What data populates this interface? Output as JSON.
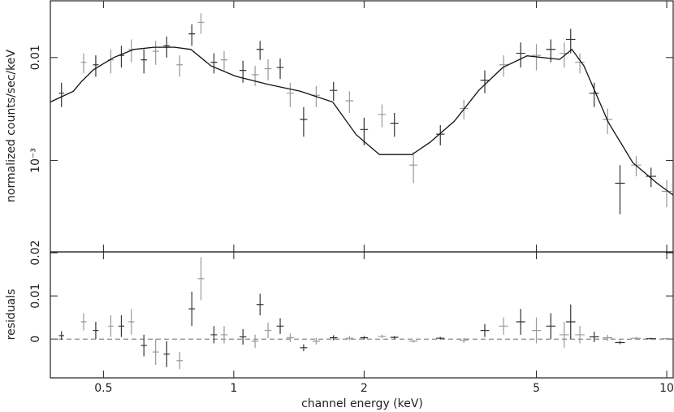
{
  "chart_data": [
    {
      "type": "spectrum",
      "ylabel": "normalized counts/sec/keV",
      "log_x": true,
      "log_y": true,
      "xlim": [
        0.377,
        10.35
      ],
      "ylim": [
        0.000129,
        0.0356
      ],
      "yticks": [
        0.01,
        {
          "value": 0.001,
          "label": "10⁻³"
        }
      ],
      "series": [
        {
          "style": "errorbar",
          "color": "#333333",
          "x": [
            0.4,
            0.45,
            0.48,
            0.52,
            0.55,
            0.58,
            0.62,
            0.66,
            0.7,
            0.75,
            0.8,
            0.84,
            0.9,
            0.95,
            1.05,
            1.12,
            1.15,
            1.2,
            1.28,
            1.35,
            1.45,
            1.55,
            1.7,
            1.85,
            2.0,
            2.2,
            2.35,
            2.6,
            3.0,
            3.4,
            3.8,
            4.2,
            4.6,
            5.0,
            5.4,
            5.8,
            6.0,
            6.3,
            6.8,
            7.3,
            7.8,
            8.5,
            9.2,
            10.0
          ],
          "values": [
            0.0045,
            0.009,
            0.0085,
            0.0095,
            0.0105,
            0.012,
            0.0095,
            0.0115,
            0.013,
            0.0085,
            0.017,
            0.022,
            0.009,
            0.0095,
            0.0075,
            0.0068,
            0.012,
            0.0078,
            0.008,
            0.0045,
            0.0025,
            0.0043,
            0.0048,
            0.0038,
            0.002,
            0.0028,
            0.0023,
            0.0009,
            0.0018,
            0.0032,
            0.006,
            0.0085,
            0.011,
            0.0105,
            0.012,
            0.011,
            0.015,
            0.009,
            0.0045,
            0.0025,
            0.0006,
            0.0009,
            0.0007,
            0.0005
          ],
          "errors": [
            0.0012,
            0.002,
            0.002,
            0.0025,
            0.0025,
            0.003,
            0.0025,
            0.003,
            0.003,
            0.002,
            0.004,
            0.005,
            0.002,
            0.002,
            0.0018,
            0.0015,
            0.0025,
            0.0018,
            0.0018,
            0.0012,
            0.0008,
            0.001,
            0.001,
            0.0009,
            0.0006,
            0.0007,
            0.0006,
            0.0003,
            0.0004,
            0.0007,
            0.0015,
            0.002,
            0.003,
            0.003,
            0.003,
            0.003,
            0.004,
            0.002,
            0.0012,
            0.0007,
            0.0003,
            0.0002,
            0.00015,
            0.00015
          ]
        },
        {
          "style": "line",
          "color": "#111111",
          "x": [
            0.377,
            0.426,
            0.444,
            0.474,
            0.528,
            0.588,
            0.655,
            0.73,
            0.796,
            0.886,
            1.009,
            1.198,
            1.424,
            1.692,
            1.917,
            2.17,
            2.58,
            2.84,
            3.23,
            3.68,
            4.18,
            4.76,
            5.66,
            6.04,
            6.44,
            7.33,
            8.35,
            9.5,
            10.35
          ],
          "values": [
            0.0037,
            0.0047,
            0.0058,
            0.0076,
            0.01,
            0.012,
            0.0126,
            0.0126,
            0.012,
            0.0083,
            0.0066,
            0.0055,
            0.0047,
            0.0037,
            0.00178,
            0.00114,
            0.00114,
            0.0015,
            0.0024,
            0.0048,
            0.008,
            0.0104,
            0.0096,
            0.012,
            0.0083,
            0.00235,
            0.00095,
            0.0006,
            0.00046
          ]
        }
      ]
    },
    {
      "type": "residuals",
      "ylabel": "residuals",
      "xlabel": "channel energy (keV)",
      "log_x": true,
      "xlim": [
        0.377,
        10.35
      ],
      "ylim": [
        -0.009,
        0.0202
      ],
      "xticks": [
        0.5,
        1,
        2,
        5,
        10
      ],
      "yticks": [
        0,
        0.01,
        0.02
      ],
      "zero_line": true,
      "series": [
        {
          "style": "errorbar",
          "color": "#333333",
          "x": [
            0.4,
            0.45,
            0.48,
            0.52,
            0.55,
            0.58,
            0.62,
            0.66,
            0.7,
            0.75,
            0.8,
            0.84,
            0.9,
            0.95,
            1.05,
            1.12,
            1.15,
            1.2,
            1.28,
            1.35,
            1.45,
            1.55,
            1.7,
            1.85,
            2.0,
            2.2,
            2.35,
            2.6,
            3.0,
            3.4,
            3.8,
            4.2,
            4.6,
            5.0,
            5.4,
            5.8,
            6.0,
            6.3,
            6.8,
            7.3,
            7.8,
            8.5,
            9.2,
            10.0
          ],
          "values": [
            0.0008,
            0.004,
            0.002,
            0.003,
            0.003,
            0.004,
            -0.0015,
            -0.003,
            -0.0035,
            -0.005,
            0.007,
            0.014,
            0.001,
            0.001,
            0.0005,
            -0.0005,
            0.008,
            0.002,
            0.003,
            0.0003,
            -0.002,
            -0.0005,
            0.0003,
            0.0002,
            0.0003,
            0.0006,
            0.0004,
            -0.0005,
            0.0002,
            -0.0003,
            0.002,
            0.003,
            0.004,
            0.002,
            0.003,
            0.001,
            0.004,
            0.001,
            0.0005,
            0.0003,
            -0.0008,
            0.0002,
            0.0001,
            0.0001
          ],
          "errors": [
            0.001,
            0.002,
            0.002,
            0.0025,
            0.0025,
            0.003,
            0.0025,
            0.003,
            0.003,
            0.002,
            0.004,
            0.005,
            0.002,
            0.002,
            0.0018,
            0.0015,
            0.0025,
            0.0018,
            0.0018,
            0.001,
            0.0008,
            0.0008,
            0.0006,
            0.0005,
            0.0004,
            0.0004,
            0.0003,
            0.0003,
            0.0003,
            0.0006,
            0.0015,
            0.002,
            0.003,
            0.003,
            0.003,
            0.003,
            0.004,
            0.002,
            0.0012,
            0.0007,
            0.0004,
            0.0003,
            0.0002,
            0.0002
          ]
        }
      ]
    }
  ]
}
